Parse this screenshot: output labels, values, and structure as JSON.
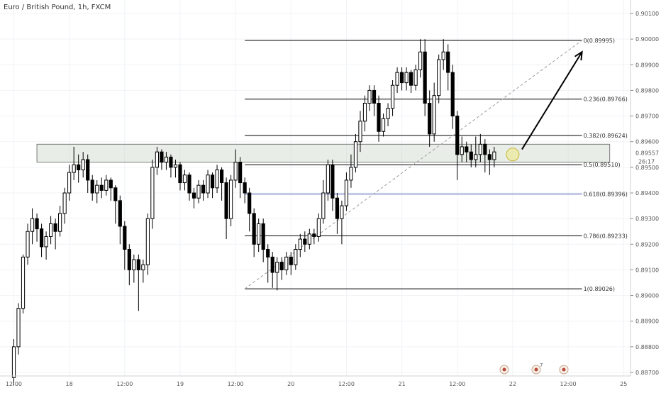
{
  "chart_data": {
    "type": "candlestick",
    "title": "Euro / British Pound, 1h, FXCM",
    "ylim": [
      0.887,
      0.9012
    ],
    "y_ticks": [
      0.887,
      0.888,
      0.889,
      0.89,
      0.891,
      0.892,
      0.893,
      0.894,
      0.895,
      0.896,
      0.897,
      0.898,
      0.899,
      0.9,
      0.901
    ],
    "y_tick_labels": [
      "0.88700",
      "0.88800",
      "0.88900",
      "0.89000",
      "0.89100",
      "0.89200",
      "0.89300",
      "0.89400",
      "0.89500",
      "0.89600",
      "0.89700",
      "0.89800",
      "0.89900",
      "0.90000",
      "0.90100"
    ],
    "x_ticks": [
      {
        "label": "12:00",
        "i": 0
      },
      {
        "label": "18",
        "i": 12
      },
      {
        "label": "12:00",
        "i": 24
      },
      {
        "label": "19",
        "i": 36
      },
      {
        "label": "12:00",
        "i": 48
      },
      {
        "label": "20",
        "i": 60
      },
      {
        "label": "12:00",
        "i": 72
      },
      {
        "label": "21",
        "i": 84
      },
      {
        "label": "12:00",
        "i": 96
      },
      {
        "label": "22",
        "i": 108
      },
      {
        "label": "12:00",
        "i": 120
      },
      {
        "label": "25",
        "i": 132
      }
    ],
    "last_price": "0.89557",
    "countdown": "26:17",
    "resistance_zone": {
      "from_i": 5,
      "to_i": 129,
      "low": 0.8952,
      "high": 0.8959
    },
    "fib_levels": [
      {
        "label": "0(0.89995)",
        "value": 0.89995
      },
      {
        "label": "0.236(0.89766)",
        "value": 0.89766
      },
      {
        "label": "0.382(0.89624)",
        "value": 0.89624
      },
      {
        "label": "0.5(0.89510)",
        "value": 0.8951
      },
      {
        "label": "0.618(0.89396)",
        "value": 0.89396,
        "color": "#3f51b5"
      },
      {
        "label": "0.786(0.89233)",
        "value": 0.89233
      },
      {
        "label": "1(0.89026)",
        "value": 0.89026
      }
    ],
    "fib_range": {
      "from_i": 50,
      "to_i": 123
    },
    "trend_line": {
      "from": {
        "i": 50,
        "value": 0.89026
      },
      "to": {
        "i": 123,
        "value": 0.89995
      }
    },
    "arrow": {
      "from": {
        "i": 110,
        "value": 0.8957
      },
      "to": {
        "i": 123,
        "value": 0.8995
      }
    },
    "highlight_circle": {
      "i": 108,
      "value": 0.8955
    },
    "candles": [
      [
        0.8868,
        0.888,
        0.8865,
        0.8883
      ],
      [
        0.888,
        0.8895,
        0.8877,
        0.8897
      ],
      [
        0.8895,
        0.8915,
        0.8893,
        0.8916
      ],
      [
        0.8915,
        0.8925,
        0.8912,
        0.8928
      ],
      [
        0.8925,
        0.893,
        0.892,
        0.8934
      ],
      [
        0.893,
        0.8926,
        0.8921,
        0.8932
      ],
      [
        0.8926,
        0.8919,
        0.8915,
        0.8928
      ],
      [
        0.8919,
        0.8923,
        0.8914,
        0.8925
      ],
      [
        0.8923,
        0.8928,
        0.892,
        0.8931
      ],
      [
        0.8928,
        0.8925,
        0.8918,
        0.893
      ],
      [
        0.8925,
        0.8932,
        0.8923,
        0.8935
      ],
      [
        0.8932,
        0.894,
        0.8928,
        0.8942
      ],
      [
        0.894,
        0.8948,
        0.8937,
        0.8951
      ],
      [
        0.8948,
        0.8951,
        0.8945,
        0.8958
      ],
      [
        0.8951,
        0.8949,
        0.8944,
        0.8955
      ],
      [
        0.8949,
        0.8953,
        0.8946,
        0.8956
      ],
      [
        0.8953,
        0.8945,
        0.894,
        0.8955
      ],
      [
        0.8945,
        0.894,
        0.8937,
        0.8947
      ],
      [
        0.894,
        0.8943,
        0.8936,
        0.8945
      ],
      [
        0.8943,
        0.8941,
        0.8938,
        0.8946
      ],
      [
        0.8941,
        0.8945,
        0.8939,
        0.8947
      ],
      [
        0.8945,
        0.8942,
        0.8937,
        0.8946
      ],
      [
        0.8942,
        0.8937,
        0.8928,
        0.8943
      ],
      [
        0.8937,
        0.8927,
        0.892,
        0.8939
      ],
      [
        0.8927,
        0.8918,
        0.891,
        0.8929
      ],
      [
        0.8918,
        0.891,
        0.8904,
        0.892
      ],
      [
        0.891,
        0.8914,
        0.8905,
        0.8916
      ],
      [
        0.8914,
        0.891,
        0.8894,
        0.8916
      ],
      [
        0.891,
        0.8912,
        0.8905,
        0.8914
      ],
      [
        0.8912,
        0.893,
        0.8908,
        0.8932
      ],
      [
        0.893,
        0.895,
        0.8926,
        0.8953
      ],
      [
        0.895,
        0.8956,
        0.8947,
        0.8958
      ],
      [
        0.8956,
        0.8952,
        0.8949,
        0.8957
      ],
      [
        0.8952,
        0.8954,
        0.8949,
        0.8956
      ],
      [
        0.8954,
        0.895,
        0.8946,
        0.8955
      ],
      [
        0.895,
        0.8951,
        0.8946,
        0.8953
      ],
      [
        0.8951,
        0.8944,
        0.8941,
        0.8952
      ],
      [
        0.8944,
        0.8947,
        0.8941,
        0.8949
      ],
      [
        0.8947,
        0.894,
        0.8937,
        0.8948
      ],
      [
        0.894,
        0.8938,
        0.8934,
        0.8942
      ],
      [
        0.8938,
        0.8943,
        0.8936,
        0.8945
      ],
      [
        0.8943,
        0.894,
        0.8937,
        0.8945
      ],
      [
        0.894,
        0.8947,
        0.8938,
        0.8949
      ],
      [
        0.8947,
        0.8942,
        0.8938,
        0.8948
      ],
      [
        0.8942,
        0.8949,
        0.894,
        0.8951
      ],
      [
        0.8949,
        0.8944,
        0.8937,
        0.895
      ],
      [
        0.8944,
        0.893,
        0.8922,
        0.8946
      ],
      [
        0.893,
        0.8945,
        0.8927,
        0.8947
      ],
      [
        0.8945,
        0.8952,
        0.8942,
        0.8957
      ],
      [
        0.8952,
        0.8944,
        0.8938,
        0.8954
      ],
      [
        0.8944,
        0.894,
        0.8936,
        0.8946
      ],
      [
        0.894,
        0.8932,
        0.8925,
        0.8942
      ],
      [
        0.8932,
        0.892,
        0.8915,
        0.8934
      ],
      [
        0.892,
        0.8928,
        0.8917,
        0.893
      ],
      [
        0.8928,
        0.8918,
        0.8913,
        0.893
      ],
      [
        0.8918,
        0.8915,
        0.8905,
        0.892
      ],
      [
        0.8915,
        0.8909,
        0.8903,
        0.8917
      ],
      [
        0.8909,
        0.8913,
        0.8902,
        0.8915
      ],
      [
        0.8913,
        0.891,
        0.8906,
        0.8915
      ],
      [
        0.891,
        0.8915,
        0.8908,
        0.8917
      ],
      [
        0.8915,
        0.8912,
        0.8908,
        0.8917
      ],
      [
        0.8912,
        0.8918,
        0.891,
        0.892
      ],
      [
        0.8918,
        0.8922,
        0.8915,
        0.8924
      ],
      [
        0.8922,
        0.892,
        0.8917,
        0.8925
      ],
      [
        0.892,
        0.8924,
        0.8918,
        0.8926
      ],
      [
        0.8924,
        0.8923,
        0.892,
        0.8926
      ],
      [
        0.8923,
        0.893,
        0.8921,
        0.8932
      ],
      [
        0.893,
        0.894,
        0.8928,
        0.8945
      ],
      [
        0.894,
        0.8951,
        0.8937,
        0.8953
      ],
      [
        0.8951,
        0.8938,
        0.8933,
        0.8953
      ],
      [
        0.8938,
        0.893,
        0.8924,
        0.894
      ],
      [
        0.893,
        0.8935,
        0.892,
        0.8937
      ],
      [
        0.8935,
        0.8945,
        0.8933,
        0.8948
      ],
      [
        0.8945,
        0.895,
        0.8942,
        0.8955
      ],
      [
        0.895,
        0.896,
        0.8948,
        0.8963
      ],
      [
        0.896,
        0.8968,
        0.8956,
        0.8972
      ],
      [
        0.8968,
        0.8975,
        0.8964,
        0.8978
      ],
      [
        0.8975,
        0.898,
        0.8972,
        0.8982
      ],
      [
        0.898,
        0.8975,
        0.897,
        0.8982
      ],
      [
        0.8975,
        0.8964,
        0.896,
        0.8978
      ],
      [
        0.8964,
        0.8969,
        0.8962,
        0.8971
      ],
      [
        0.8969,
        0.8973,
        0.8966,
        0.8975
      ],
      [
        0.8973,
        0.8982,
        0.897,
        0.8984
      ],
      [
        0.8982,
        0.8987,
        0.8979,
        0.8989
      ],
      [
        0.8987,
        0.8983,
        0.898,
        0.8989
      ],
      [
        0.8983,
        0.8987,
        0.898,
        0.8989
      ],
      [
        0.8987,
        0.8982,
        0.8979,
        0.8988
      ],
      [
        0.8982,
        0.8988,
        0.898,
        0.899
      ],
      [
        0.8988,
        0.8995,
        0.8985,
        0.9
      ],
      [
        0.8995,
        0.8975,
        0.897,
        0.9
      ],
      [
        0.8975,
        0.8963,
        0.8958,
        0.898
      ],
      [
        0.8963,
        0.8978,
        0.896,
        0.8983
      ],
      [
        0.8978,
        0.8992,
        0.8975,
        0.8994
      ],
      [
        0.8992,
        0.8995,
        0.8988,
        0.9
      ],
      [
        0.8995,
        0.8987,
        0.898,
        0.8998
      ],
      [
        0.8987,
        0.897,
        0.8965,
        0.899
      ],
      [
        0.897,
        0.8955,
        0.8945,
        0.8972
      ],
      [
        0.8955,
        0.8958,
        0.8952,
        0.8962
      ],
      [
        0.8958,
        0.8956,
        0.8952,
        0.896
      ],
      [
        0.8956,
        0.8953,
        0.895,
        0.8959
      ],
      [
        0.8953,
        0.8955,
        0.895,
        0.8962
      ],
      [
        0.8955,
        0.8959,
        0.8952,
        0.8963
      ],
      [
        0.8959,
        0.8955,
        0.8948,
        0.8961
      ],
      [
        0.8955,
        0.8953,
        0.8947,
        0.8957
      ],
      [
        0.8953,
        0.8956,
        0.895,
        0.8958
      ]
    ]
  }
}
